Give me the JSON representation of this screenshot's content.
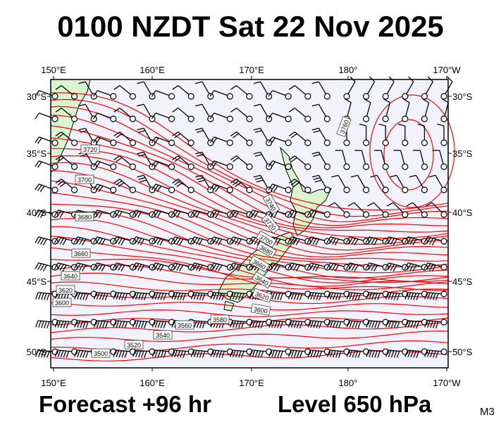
{
  "title": "0100 NZDT Sat 22 Nov 2025",
  "footer": {
    "forecast": "Forecast +96 hr",
    "level": "Level 650 hPa",
    "code": "M3"
  },
  "map": {
    "lon_labels": [
      "150°E",
      "160°E",
      "170°E",
      "180°",
      "170°W"
    ],
    "lat_labels": [
      "30°S",
      "35°S",
      "40°S",
      "45°S",
      "50°S"
    ],
    "contour_labels": [
      "3760",
      "3740",
      "3720",
      "3720",
      "3700",
      "3700",
      "3680",
      "3680",
      "3660",
      "3660",
      "3640",
      "3640",
      "3620",
      "3620",
      "3600",
      "3600",
      "3580",
      "3560",
      "3540",
      "3520",
      "3500"
    ],
    "colors": {
      "ocean": "#f2f2fc",
      "land": "#d8f5d0",
      "contour": "#ff0000",
      "barb": "#000000"
    }
  }
}
